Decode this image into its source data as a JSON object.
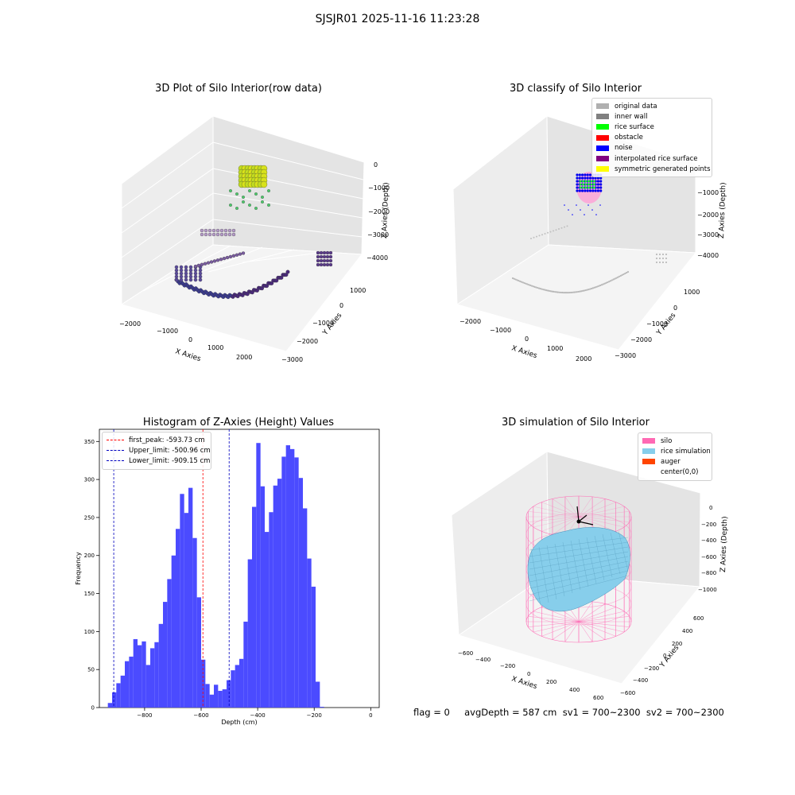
{
  "figure": {
    "title": "SJSJR01 2025-11-16 11:23:28",
    "status_text": "flag = 0     avgDepth = 587 cm  sv1 = 700~2300  sv2 = 700~2300"
  },
  "panels": {
    "raw": {
      "title": "3D Plot of Silo Interior(row data)",
      "xlabel": "X Axies",
      "ylabel": "Y Axies",
      "zlabel": "Z Axies (Depth)",
      "x_ticks": [
        "−2000",
        "−1000",
        "0",
        "1000",
        "2000"
      ],
      "y_ticks": [
        "1000",
        "0",
        "−1000",
        "−2000",
        "−3000"
      ],
      "z_ticks": [
        "0",
        "−1000",
        "−2000",
        "−3000",
        "−4000"
      ]
    },
    "classify": {
      "title": "3D classify of Silo Interior",
      "xlabel": "X Axies",
      "ylabel": "Y Axies",
      "zlabel": "Z Axies (Depth)",
      "x_ticks": [
        "−2000",
        "−1000",
        "0",
        "1000",
        "2000"
      ],
      "y_ticks": [
        "1000",
        "0",
        "−1000",
        "−2000",
        "−3000"
      ],
      "z_ticks": [
        "−1000",
        "−2000",
        "−3000",
        "−4000"
      ],
      "legend": [
        {
          "label": "original data",
          "color": "#b0b0b0"
        },
        {
          "label": "inner wall",
          "color": "#808080"
        },
        {
          "label": "rice surface",
          "color": "#00ff00"
        },
        {
          "label": "obstacle",
          "color": "#ff0000"
        },
        {
          "label": "noise",
          "color": "#0000ff"
        },
        {
          "label": "interpolated rice surface",
          "color": "#800080"
        },
        {
          "label": "symmetric generated points",
          "color": "#ffff00"
        }
      ]
    },
    "simulation": {
      "title": "3D simulation of Silo Interior",
      "xlabel": "X Axies",
      "ylabel": "Y Axies",
      "zlabel": "Z Axies (Depth)",
      "x_ticks": [
        "−600",
        "−400",
        "−200",
        "0",
        "200",
        "400",
        "600"
      ],
      "y_ticks": [
        "600",
        "400",
        "200",
        "0",
        "−200",
        "−400",
        "−600"
      ],
      "z_ticks": [
        "0",
        "−200",
        "−400",
        "−600",
        "−800",
        "−1000"
      ],
      "legend": [
        {
          "label": "silo",
          "color": "#ff69b4"
        },
        {
          "label": "rice simulation",
          "color": "#87ceeb"
        },
        {
          "label": "auger",
          "color": "#ff4500"
        },
        {
          "label": "center(0,0)",
          "color": "#ffffff"
        }
      ]
    }
  },
  "chart_data": {
    "type": "bar",
    "title": "Histogram of Z-Axies (Height) Values",
    "xlabel": "Depth (cm)",
    "ylabel": "Frequency",
    "xlim": [
      -960,
      30
    ],
    "ylim": [
      0,
      366
    ],
    "bin_width": 15,
    "bin_start": -930,
    "x_ticks": [
      -800,
      -600,
      -400,
      -200,
      0
    ],
    "x_tick_labels": [
      "−800",
      "−600",
      "−400",
      "−200",
      "0"
    ],
    "y_ticks": [
      0,
      50,
      100,
      150,
      200,
      250,
      300,
      350
    ],
    "bar_color": "#4b4bff",
    "values": [
      6,
      20,
      32,
      42,
      61,
      67,
      90,
      82,
      87,
      56,
      78,
      86,
      110,
      139,
      169,
      200,
      235,
      281,
      256,
      289,
      223,
      145,
      63,
      31,
      17,
      30,
      22,
      24,
      36,
      49,
      56,
      64,
      113,
      195,
      264,
      348,
      291,
      231,
      257,
      292,
      301,
      330,
      345,
      340,
      329,
      302,
      262,
      196,
      159,
      34,
      1
    ],
    "vlines": [
      {
        "label": "first_peak: -593.73 cm",
        "x": -593.73,
        "color": "#ff0000"
      },
      {
        "label": "Upper_limit: -500.96 cm",
        "x": -500.96,
        "color": "#0000c0"
      },
      {
        "label": "Lower_limit: -909.15 cm",
        "x": -909.15,
        "color": "#0000c0"
      }
    ]
  }
}
